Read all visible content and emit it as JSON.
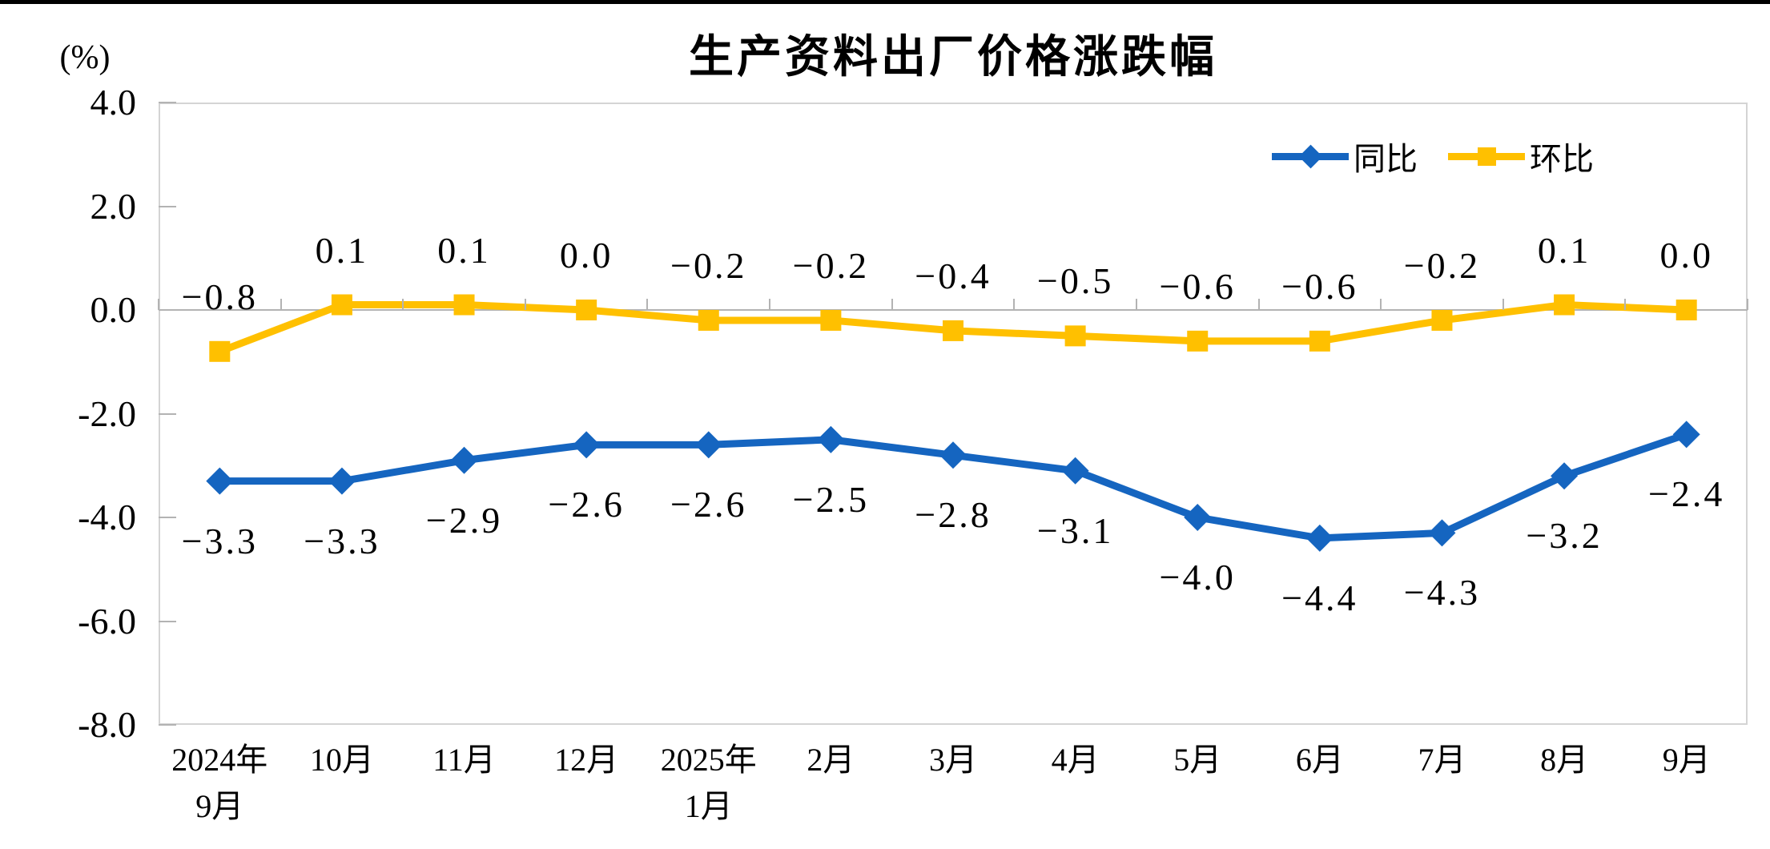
{
  "chart_data": {
    "type": "line",
    "title": "生产资料出厂价格涨跌幅",
    "unit_label": "(%)",
    "categories": [
      "2024年\n9月",
      "10月",
      "11月",
      "12月",
      "2025年\n1月",
      "2月",
      "3月",
      "4月",
      "5月",
      "6月",
      "7月",
      "8月",
      "9月"
    ],
    "series": [
      {
        "name": "同比",
        "color": "#1565c0",
        "marker": "diamond",
        "label_position": "below",
        "values": [
          -3.3,
          -3.3,
          -2.9,
          -2.6,
          -2.6,
          -2.5,
          -2.8,
          -3.1,
          -4.0,
          -4.4,
          -4.3,
          -3.2,
          -2.4
        ]
      },
      {
        "name": "环比",
        "color": "#ffc000",
        "marker": "square",
        "label_position": "above",
        "values": [
          -0.8,
          0.1,
          0.1,
          0.0,
          -0.2,
          -0.2,
          -0.4,
          -0.5,
          -0.6,
          -0.6,
          -0.2,
          0.1,
          0.0
        ]
      }
    ],
    "y_axis": {
      "min": -8,
      "max": 4,
      "step": 2,
      "tick_labels": [
        "4.0",
        "2.0",
        "0.0",
        "-2.0",
        "-4.0",
        "-6.0",
        "-8.0"
      ]
    },
    "legend": {
      "position": "top-right"
    },
    "label_decimals": 1,
    "zero_line": true,
    "grid": "off",
    "colors": {
      "axis_line": "#b3b3b3",
      "frame": "#d4d4d4",
      "text": "#000000",
      "background": "#ffffff",
      "page_border": "#000000"
    }
  }
}
